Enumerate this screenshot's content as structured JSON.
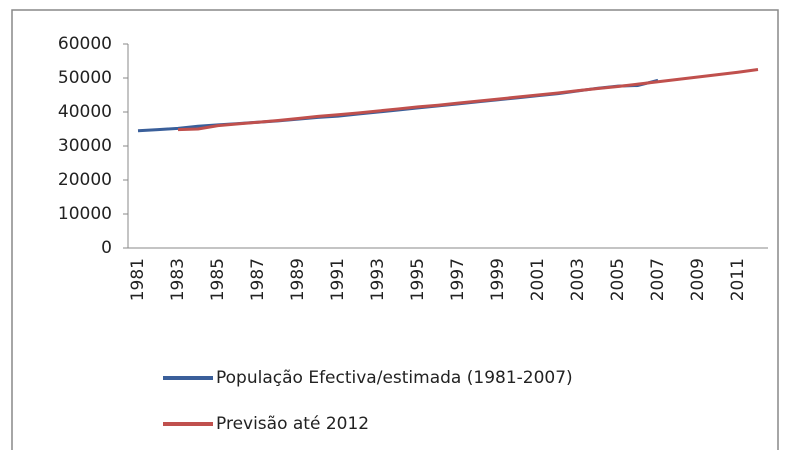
{
  "chart_data": {
    "type": "line",
    "categories": [
      "1981",
      null,
      "1983",
      null,
      "1985",
      null,
      "1987",
      null,
      "1989",
      null,
      "1991",
      null,
      "1993",
      null,
      "1995",
      null,
      "1997",
      null,
      "1999",
      null,
      "2001",
      null,
      "2003",
      null,
      "2005",
      null,
      "2007",
      null,
      "2009",
      null,
      "2011",
      null
    ],
    "series": [
      {
        "name": "População Efectiva/estimada (1981-2007)",
        "color": "#3a5f9a",
        "values": [
          34500,
          34800,
          35200,
          35800,
          36200,
          36600,
          37000,
          37400,
          37900,
          38400,
          38800,
          39400,
          40000,
          40600,
          41200,
          41800,
          42400,
          43000,
          43600,
          44200,
          44800,
          45400,
          46200,
          47000,
          47600,
          47800,
          49300,
          null,
          null,
          null,
          null,
          null
        ]
      },
      {
        "name": "Previsão até 2012",
        "color": "#c0504d",
        "values": [
          null,
          null,
          34800,
          35000,
          36000,
          36500,
          37000,
          37500,
          38100,
          38700,
          39200,
          39700,
          40300,
          40900,
          41500,
          42000,
          42600,
          43200,
          43800,
          44400,
          45000,
          45600,
          46300,
          46900,
          47500,
          48200,
          48900,
          49600,
          50300,
          51000,
          51700,
          52500
        ]
      }
    ],
    "ylim": [
      0,
      60000
    ],
    "yticks": [
      0,
      10000,
      20000,
      30000,
      40000,
      50000,
      60000
    ]
  }
}
